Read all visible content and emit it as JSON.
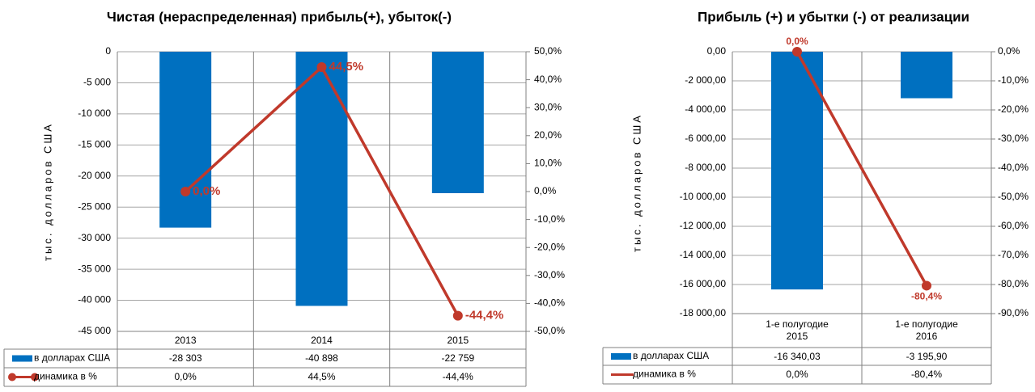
{
  "chart_data": [
    {
      "type": "combo",
      "title": "Чистая (нераспределенная)  прибыль(+), убыток(-)",
      "y_label": "тыс. долларов США",
      "categories": [
        "2013",
        "2014",
        "2015"
      ],
      "series": [
        {
          "name": "в долларах США",
          "color": "#0070c0",
          "kind": "bar",
          "values": [
            -28303,
            -40898,
            -22759
          ],
          "value_labels": [
            "-28 303",
            "-40 898",
            "-22 759"
          ]
        },
        {
          "name": "динамика в %",
          "color": "#c0392b",
          "kind": "line",
          "axis": "y2",
          "values": [
            0.0,
            44.5,
            -44.4
          ],
          "value_labels": [
            "0,0%",
            "44,5%",
            "-44,4%"
          ]
        }
      ],
      "ylim": [
        -45000,
        0
      ],
      "yticks": [
        {
          "value": 0,
          "label": "0"
        },
        {
          "value": -5000,
          "label": "-5 000"
        },
        {
          "value": -10000,
          "label": "-10 000"
        },
        {
          "value": -15000,
          "label": "-15 000"
        },
        {
          "value": -20000,
          "label": "-20 000"
        },
        {
          "value": -25000,
          "label": "-25 000"
        },
        {
          "value": -30000,
          "label": "-30 000"
        },
        {
          "value": -35000,
          "label": "-35 000"
        },
        {
          "value": -40000,
          "label": "-40 000"
        },
        {
          "value": -45000,
          "label": "-45 000"
        }
      ],
      "y2lim": [
        -50,
        50
      ],
      "y2ticks": [
        {
          "value": 50,
          "label": "50,0%"
        },
        {
          "value": 40,
          "label": "40,0%"
        },
        {
          "value": 30,
          "label": "30,0%"
        },
        {
          "value": 20,
          "label": "20,0%"
        },
        {
          "value": 10,
          "label": "10,0%"
        },
        {
          "value": 0,
          "label": "0,0%"
        },
        {
          "value": -10,
          "label": "-10,0%"
        },
        {
          "value": -20,
          "label": "-20,0%"
        },
        {
          "value": -30,
          "label": "-30,0%"
        },
        {
          "value": -40,
          "label": "-40,0%"
        },
        {
          "value": -50,
          "label": "-50,0%"
        }
      ],
      "grid": true
    },
    {
      "type": "combo",
      "title": "Прибыль (+) и убытки (-) от реализации",
      "y_label": "тыс. долларов США",
      "categories": [
        "1-е полугодие\n2015",
        "1-е полугодие\n2016"
      ],
      "series": [
        {
          "name": "в долларах США",
          "color": "#0070c0",
          "kind": "bar",
          "values": [
            -16340.03,
            -3195.9
          ],
          "value_labels": [
            "-16 340,03",
            "-3 195,90"
          ]
        },
        {
          "name": "динамика в %",
          "color": "#c0392b",
          "kind": "line",
          "axis": "y2",
          "values": [
            0.0,
            -80.4
          ],
          "value_labels": [
            "0,0%",
            "-80,4%"
          ]
        }
      ],
      "ylim": [
        -18000,
        0
      ],
      "yticks": [
        {
          "value": 0,
          "label": "0,00"
        },
        {
          "value": -2000,
          "label": "-2 000,00"
        },
        {
          "value": -4000,
          "label": "-4 000,00"
        },
        {
          "value": -6000,
          "label": "-6 000,00"
        },
        {
          "value": -8000,
          "label": "-8 000,00"
        },
        {
          "value": -10000,
          "label": "-10 000,00"
        },
        {
          "value": -12000,
          "label": "-12 000,00"
        },
        {
          "value": -14000,
          "label": "-14 000,00"
        },
        {
          "value": -16000,
          "label": "-16 000,00"
        },
        {
          "value": -18000,
          "label": "-18 000,00"
        }
      ],
      "y2lim": [
        -90,
        0
      ],
      "y2ticks": [
        {
          "value": 0,
          "label": "0,0%"
        },
        {
          "value": -10,
          "label": "-10,0%"
        },
        {
          "value": -20,
          "label": "-20,0%"
        },
        {
          "value": -30,
          "label": "-30,0%"
        },
        {
          "value": -40,
          "label": "-40,0%"
        },
        {
          "value": -50,
          "label": "-50,0%"
        },
        {
          "value": -60,
          "label": "-60,0%"
        },
        {
          "value": -70,
          "label": "-70,0%"
        },
        {
          "value": -80,
          "label": "-80,0%"
        },
        {
          "value": -90,
          "label": "-90,0%"
        }
      ],
      "grid": true
    }
  ]
}
